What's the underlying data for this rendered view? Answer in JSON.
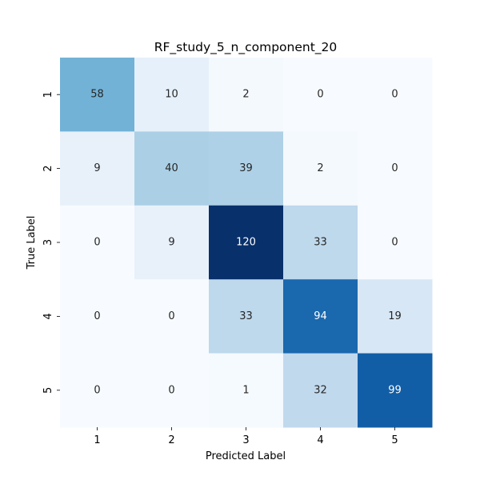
{
  "chart_data": {
    "type": "heatmap",
    "title": "RF_study_5_n_component_20",
    "xlabel": "Predicted Label",
    "ylabel": "True Label",
    "x_categories": [
      "1",
      "2",
      "3",
      "4",
      "5"
    ],
    "y_categories": [
      "1",
      "2",
      "3",
      "4",
      "5"
    ],
    "values": [
      [
        58,
        10,
        2,
        0,
        0
      ],
      [
        9,
        40,
        39,
        2,
        0
      ],
      [
        0,
        9,
        120,
        33,
        0
      ],
      [
        0,
        0,
        33,
        94,
        19
      ],
      [
        0,
        0,
        1,
        32,
        99
      ]
    ],
    "value_range": [
      0,
      120
    ],
    "colormap": "Blues",
    "colorbar": false,
    "annotations": true,
    "colors": {
      "text_dark": "#262626",
      "text_light": "#ffffff"
    }
  }
}
